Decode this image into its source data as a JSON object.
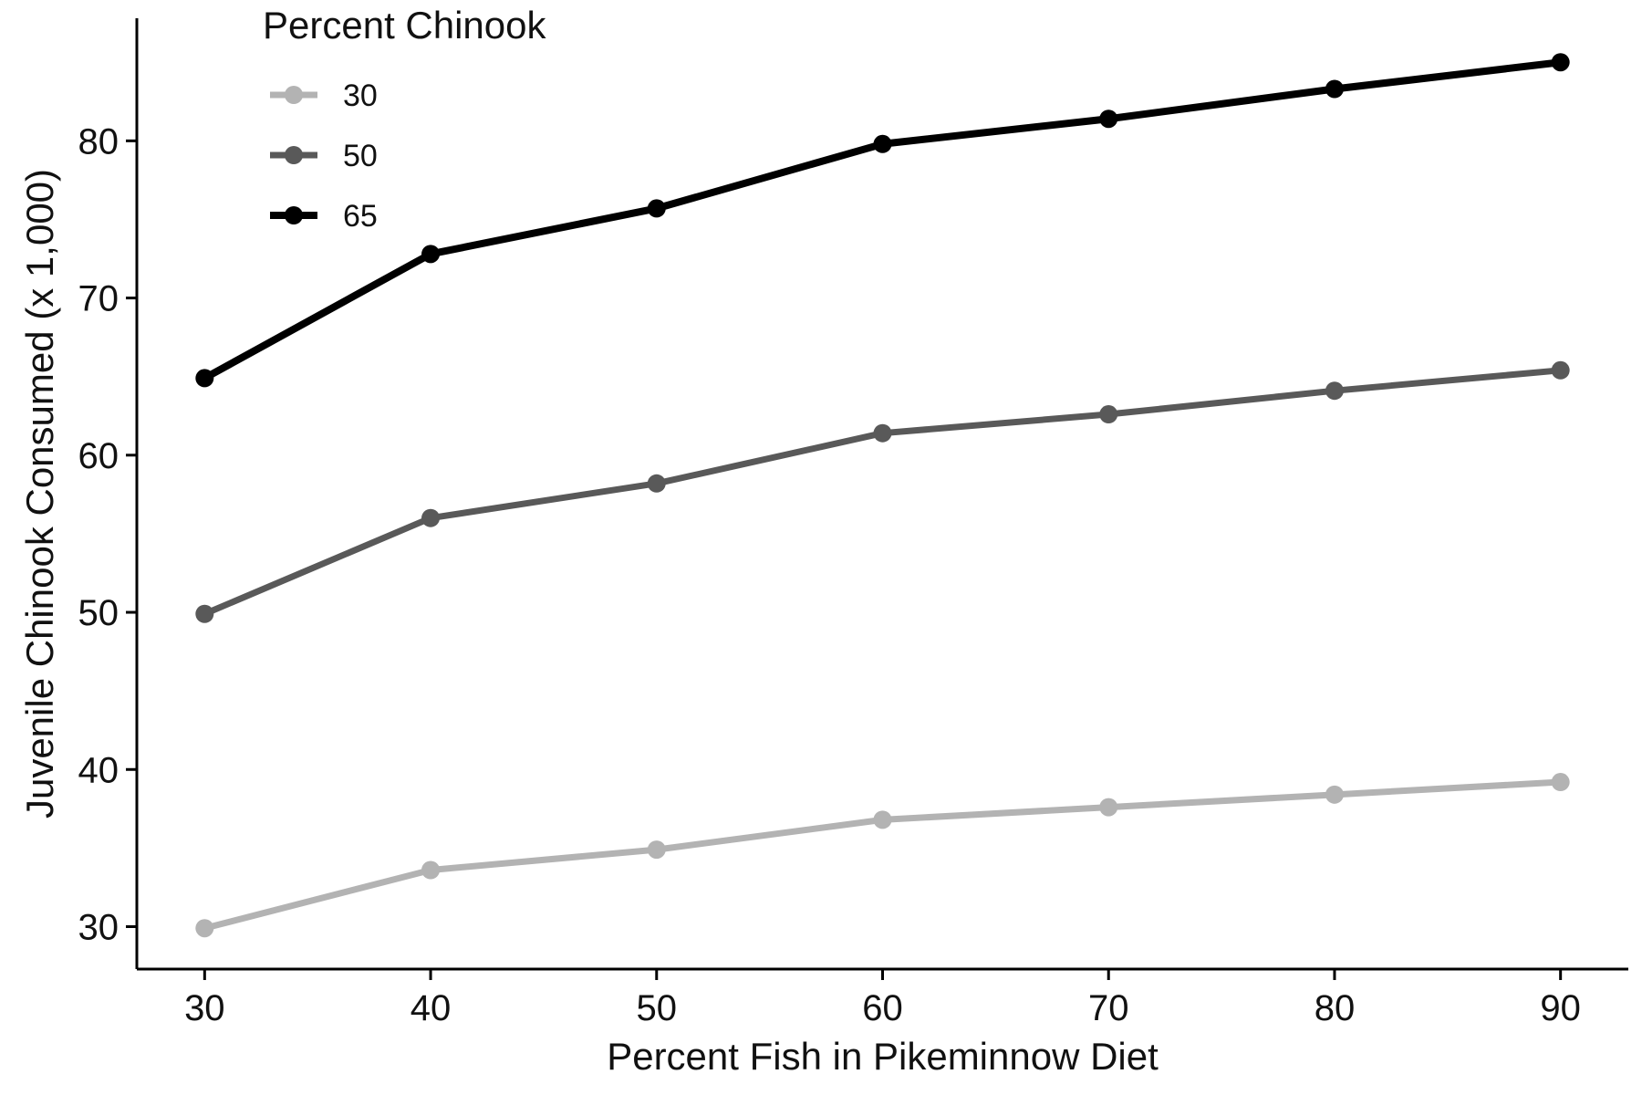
{
  "chart_data": {
    "type": "line",
    "title": "",
    "xlabel": "Percent Fish in Pikeminnow Diet",
    "ylabel": "Juvenile Chinook Consumed (x 1,000)",
    "x": [
      30,
      40,
      50,
      60,
      70,
      80,
      90
    ],
    "x_ticks": [
      "30",
      "40",
      "50",
      "60",
      "70",
      "80",
      "90"
    ],
    "y_ticks": [
      "30",
      "40",
      "50",
      "60",
      "70",
      "80"
    ],
    "xlim": [
      27,
      93
    ],
    "ylim": [
      27.3,
      87.8
    ],
    "grid": false,
    "legend": {
      "title": "Percent Chinook",
      "placement": "top-left"
    },
    "series": [
      {
        "name": "30",
        "color": "#b3b3b3",
        "values": [
          29.9,
          33.6,
          34.9,
          36.8,
          37.6,
          38.4,
          39.2
        ]
      },
      {
        "name": "50",
        "color": "#595959",
        "values": [
          49.9,
          56.0,
          58.2,
          61.4,
          62.6,
          64.1,
          65.4
        ]
      },
      {
        "name": "65",
        "color": "#000000",
        "values": [
          64.9,
          72.8,
          75.7,
          79.8,
          81.4,
          83.3,
          85.0
        ]
      }
    ]
  }
}
